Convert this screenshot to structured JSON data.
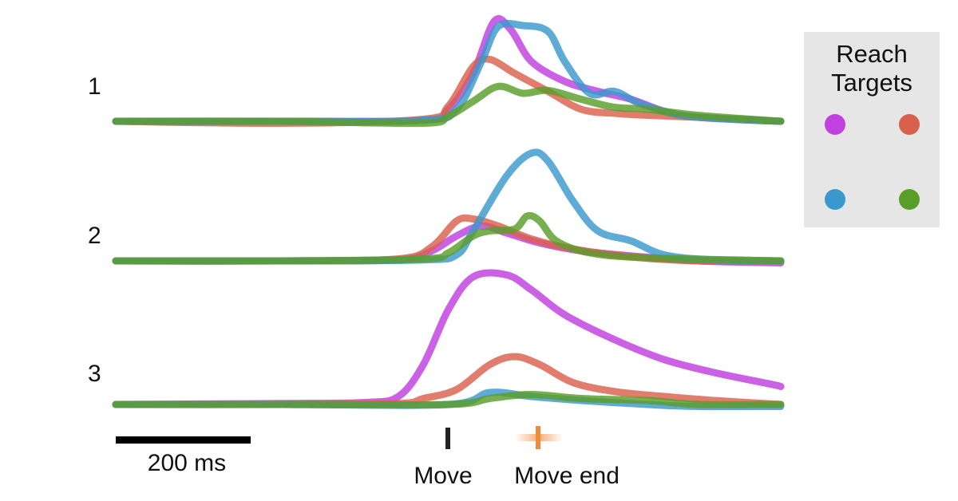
{
  "chart_data": {
    "type": "line",
    "rows": [
      {
        "label": "1",
        "series": [
          {
            "color": "#c040e0",
            "points": [
              [
                0,
                0
              ],
              [
                200,
                0
              ],
              [
                370,
                1
              ],
              [
                400,
                12
              ],
              [
                430,
                48
              ],
              [
                455,
                100
              ],
              [
                475,
                92
              ],
              [
                500,
                60
              ],
              [
                540,
                40
              ],
              [
                580,
                30
              ],
              [
                620,
                22
              ],
              [
                660,
                10
              ],
              [
                700,
                4
              ],
              [
                800,
                0
              ]
            ]
          },
          {
            "color": "#d9604c",
            "points": [
              [
                0,
                0
              ],
              [
                200,
                -2
              ],
              [
                370,
                2
              ],
              [
                400,
                15
              ],
              [
                430,
                55
              ],
              [
                450,
                62
              ],
              [
                480,
                48
              ],
              [
                520,
                30
              ],
              [
                560,
                12
              ],
              [
                600,
                8
              ],
              [
                640,
                6
              ],
              [
                700,
                4
              ],
              [
                800,
                0
              ]
            ]
          },
          {
            "color": "#3a99cc",
            "points": [
              [
                0,
                0
              ],
              [
                200,
                0
              ],
              [
                370,
                1
              ],
              [
                410,
                12
              ],
              [
                440,
                60
              ],
              [
                460,
                95
              ],
              [
                490,
                96
              ],
              [
                520,
                90
              ],
              [
                540,
                60
              ],
              [
                570,
                28
              ],
              [
                600,
                30
              ],
              [
                630,
                18
              ],
              [
                680,
                6
              ],
              [
                740,
                2
              ],
              [
                800,
                0
              ]
            ]
          },
          {
            "color": "#5a9e2a",
            "points": [
              [
                0,
                0
              ],
              [
                200,
                0
              ],
              [
                370,
                -2
              ],
              [
                400,
                5
              ],
              [
                430,
                20
              ],
              [
                460,
                35
              ],
              [
                490,
                28
              ],
              [
                520,
                31
              ],
              [
                560,
                22
              ],
              [
                600,
                14
              ],
              [
                640,
                12
              ],
              [
                700,
                6
              ],
              [
                800,
                0
              ]
            ]
          }
        ]
      },
      {
        "label": "2",
        "series": [
          {
            "color": "#c040e0",
            "points": [
              [
                0,
                0
              ],
              [
                200,
                0
              ],
              [
                340,
                1
              ],
              [
                380,
                10
              ],
              [
                410,
                25
              ],
              [
                440,
                35
              ],
              [
                470,
                28
              ],
              [
                510,
                18
              ],
              [
                560,
                10
              ],
              [
                620,
                5
              ],
              [
                700,
                0
              ],
              [
                800,
                -2
              ]
            ]
          },
          {
            "color": "#d9604c",
            "points": [
              [
                0,
                0
              ],
              [
                200,
                0
              ],
              [
                340,
                2
              ],
              [
                380,
                14
              ],
              [
                410,
                40
              ],
              [
                430,
                42
              ],
              [
                460,
                35
              ],
              [
                500,
                22
              ],
              [
                550,
                12
              ],
              [
                620,
                4
              ],
              [
                700,
                0
              ],
              [
                800,
                0
              ]
            ]
          },
          {
            "color": "#3a99cc",
            "points": [
              [
                0,
                0
              ],
              [
                200,
                0
              ],
              [
                370,
                1
              ],
              [
                410,
                6
              ],
              [
                430,
                30
              ],
              [
                470,
                85
              ],
              [
                500,
                108
              ],
              [
                520,
                100
              ],
              [
                550,
                60
              ],
              [
                580,
                30
              ],
              [
                620,
                20
              ],
              [
                660,
                6
              ],
              [
                720,
                1
              ],
              [
                800,
                0
              ]
            ]
          },
          {
            "color": "#5a9e2a",
            "points": [
              [
                0,
                0
              ],
              [
                200,
                0
              ],
              [
                370,
                2
              ],
              [
                400,
                8
              ],
              [
                430,
                25
              ],
              [
                450,
                30
              ],
              [
                480,
                32
              ],
              [
                495,
                45
              ],
              [
                510,
                40
              ],
              [
                530,
                20
              ],
              [
                570,
                8
              ],
              [
                640,
                3
              ],
              [
                800,
                0
              ]
            ]
          }
        ]
      },
      {
        "label": "3",
        "series": [
          {
            "color": "#c040e0",
            "points": [
              [
                0,
                0
              ],
              [
                200,
                1
              ],
              [
                300,
                2
              ],
              [
                340,
                8
              ],
              [
                370,
                40
              ],
              [
                400,
                95
              ],
              [
                430,
                128
              ],
              [
                470,
                130
              ],
              [
                500,
                115
              ],
              [
                540,
                90
              ],
              [
                600,
                65
              ],
              [
                660,
                45
              ],
              [
                720,
                32
              ],
              [
                790,
                20
              ],
              [
                800,
                18
              ]
            ]
          },
          {
            "color": "#d9604c",
            "points": [
              [
                0,
                0
              ],
              [
                200,
                0
              ],
              [
                340,
                1
              ],
              [
                370,
                6
              ],
              [
                410,
                15
              ],
              [
                450,
                40
              ],
              [
                480,
                48
              ],
              [
                510,
                40
              ],
              [
                550,
                22
              ],
              [
                600,
                13
              ],
              [
                660,
                8
              ],
              [
                720,
                4
              ],
              [
                800,
                0
              ]
            ]
          },
          {
            "color": "#3a99cc",
            "points": [
              [
                0,
                0
              ],
              [
                200,
                0
              ],
              [
                400,
                0
              ],
              [
                450,
                12
              ],
              [
                500,
                8
              ],
              [
                560,
                4
              ],
              [
                640,
                0
              ],
              [
                700,
                -2
              ],
              [
                800,
                -2
              ]
            ]
          },
          {
            "color": "#5a9e2a",
            "points": [
              [
                0,
                0
              ],
              [
                200,
                0
              ],
              [
                400,
                0
              ],
              [
                450,
                6
              ],
              [
                500,
                10
              ],
              [
                560,
                6
              ],
              [
                640,
                4
              ],
              [
                700,
                0
              ],
              [
                800,
                0
              ]
            ]
          }
        ]
      }
    ],
    "legend": {
      "title_line1": "Reach",
      "title_line2": "Targets",
      "placement": "top-right",
      "items": [
        {
          "color": "#c040e0"
        },
        {
          "color": "#d9604c"
        },
        {
          "color": "#3a99cc"
        },
        {
          "color": "#5a9e2a"
        }
      ]
    },
    "scale_bar": {
      "label": "200 ms"
    },
    "markers": [
      {
        "label": "Move",
        "color": "#222222"
      },
      {
        "label": "Move end",
        "color": "#f08a3c"
      }
    ]
  }
}
